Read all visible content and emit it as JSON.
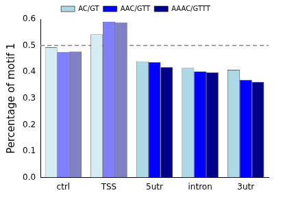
{
  "chart_data": {
    "type": "bar",
    "y_label": "Percentage of motif 1",
    "categories": [
      "ctrl",
      "TSS",
      "5utr",
      "intron",
      "3utr"
    ],
    "series": [
      {
        "name": "AC/GT",
        "color": "#add8e6",
        "colors": [
          "#d6ecf3",
          "#d6ecf3",
          "#add8e6",
          "#add8e6",
          "#add8e6"
        ],
        "values": [
          0.493,
          0.542,
          0.44,
          0.415,
          0.408
        ]
      },
      {
        "name": "AAC/GTT",
        "color": "#0000ff",
        "colors": [
          "#8080ff",
          "#8080ff",
          "#0000ff",
          "#0000ff",
          "#0000ff"
        ],
        "values": [
          0.475,
          0.59,
          0.437,
          0.402,
          0.37
        ]
      },
      {
        "name": "AAAC/GTTT",
        "color": "#00008b",
        "colors": [
          "#8080c5",
          "#8080c5",
          "#00008b",
          "#00008b",
          "#00008b"
        ],
        "values": [
          0.477,
          0.588,
          0.418,
          0.398,
          0.362
        ]
      }
    ],
    "hline": 0.5,
    "ylim": [
      0,
      0.6
    ],
    "yticks": [
      {
        "value": 0,
        "label": "0.0"
      },
      0.1,
      0.2,
      0.3,
      0.4,
      0.5,
      0.6
    ],
    "grid": false,
    "legend": "top"
  }
}
